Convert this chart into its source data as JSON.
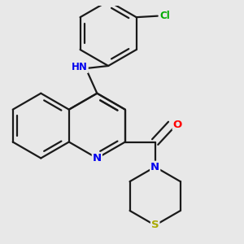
{
  "bg_color": "#e8e8e8",
  "bond_color": "#1a1a1a",
  "bond_width": 1.6,
  "atom_colors": {
    "N": "#0000ee",
    "O": "#ff0000",
    "S": "#aaaa00",
    "Cl": "#00aa00",
    "C": "#1a1a1a",
    "H": "#666666"
  },
  "font_size": 8.5,
  "fig_size": [
    3.0,
    3.0
  ],
  "dpi": 100
}
